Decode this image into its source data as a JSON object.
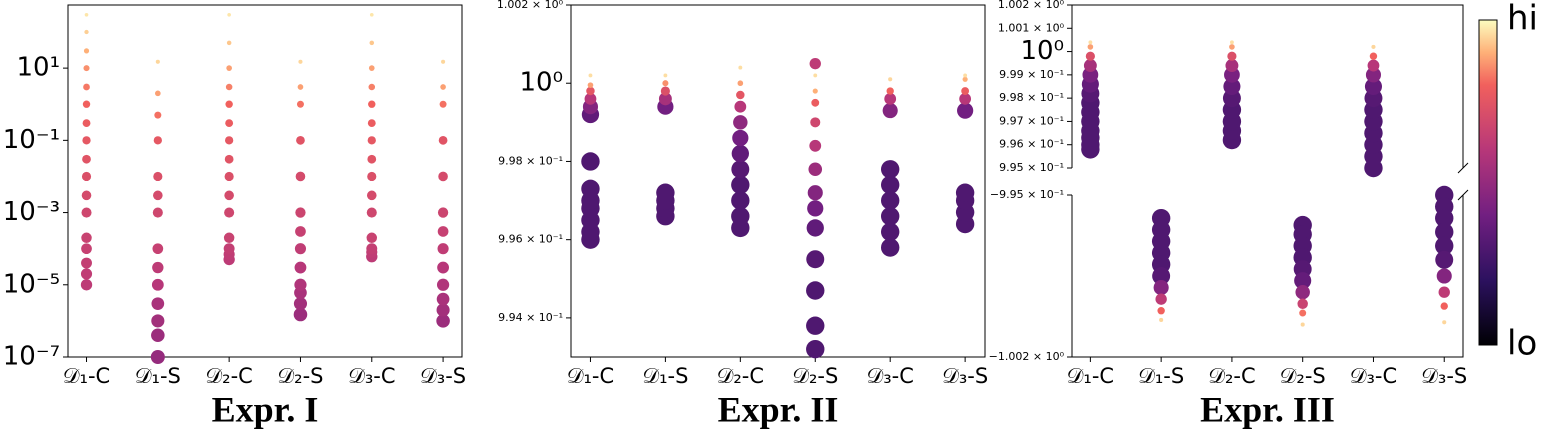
{
  "chart_data": [
    {
      "type": "scatter",
      "title": "Expr. I",
      "log": true,
      "categories": [
        "𝒟₁-C",
        "𝒟₁-S",
        "𝒟₂-C",
        "𝒟₂-S",
        "𝒟₃-C",
        "𝒟₃-S"
      ],
      "ylim": [
        1e-07,
        560
      ],
      "yticks": [
        {
          "value": 10,
          "label": "10¹"
        },
        {
          "value": 0.1,
          "label": "10⁻¹"
        },
        {
          "value": 0.001,
          "label": "10⁻³"
        },
        {
          "value": 1e-05,
          "label": "10⁻⁵"
        },
        {
          "value": 1e-07,
          "label": "10⁻⁷"
        }
      ],
      "points": [
        [
          1e-05,
          2e-05,
          4e-05,
          0.0001,
          0.0002,
          0.001,
          0.003,
          0.01,
          0.03,
          0.1,
          0.3,
          1,
          3,
          10,
          30,
          100,
          300
        ],
        [
          1e-07,
          4e-07,
          1e-06,
          3e-06,
          1e-05,
          3e-05,
          0.0001,
          0.001,
          0.003,
          0.01,
          0.1,
          0.5,
          2,
          15
        ],
        [
          5e-05,
          7e-05,
          0.0001,
          0.0002,
          0.001,
          0.003,
          0.01,
          0.03,
          0.1,
          0.3,
          1,
          3,
          10,
          50,
          300
        ],
        [
          1.5e-06,
          3e-06,
          6e-06,
          1e-05,
          3e-05,
          0.0001,
          0.0003,
          0.001,
          0.01,
          0.1,
          1,
          3,
          15
        ],
        [
          6e-05,
          8e-05,
          0.0001,
          0.0002,
          0.001,
          0.003,
          0.01,
          0.03,
          0.1,
          0.3,
          1,
          3,
          10,
          50,
          300
        ],
        [
          1e-06,
          2e-06,
          4e-06,
          1e-05,
          3e-05,
          0.0001,
          0.0003,
          0.001,
          0.01,
          0.1,
          1,
          3,
          15
        ]
      ],
      "levels": [
        [
          0.62,
          0.63,
          0.64,
          0.65,
          0.66,
          0.68,
          0.7,
          0.72,
          0.74,
          0.76,
          0.78,
          0.8,
          0.83,
          0.86,
          0.9,
          0.94,
          0.97
        ],
        [
          0.5,
          0.52,
          0.54,
          0.56,
          0.6,
          0.62,
          0.65,
          0.68,
          0.7,
          0.72,
          0.76,
          0.82,
          0.88,
          0.95
        ],
        [
          0.62,
          0.63,
          0.64,
          0.66,
          0.68,
          0.7,
          0.72,
          0.74,
          0.76,
          0.78,
          0.8,
          0.84,
          0.88,
          0.93,
          0.97
        ],
        [
          0.52,
          0.54,
          0.56,
          0.58,
          0.6,
          0.63,
          0.65,
          0.67,
          0.7,
          0.74,
          0.82,
          0.88,
          0.95
        ],
        [
          0.62,
          0.63,
          0.64,
          0.66,
          0.68,
          0.7,
          0.72,
          0.74,
          0.76,
          0.78,
          0.8,
          0.84,
          0.88,
          0.93,
          0.97
        ],
        [
          0.52,
          0.54,
          0.56,
          0.58,
          0.6,
          0.63,
          0.65,
          0.67,
          0.7,
          0.74,
          0.82,
          0.88,
          0.95
        ]
      ]
    },
    {
      "type": "scatter",
      "title": "Expr. II",
      "log": false,
      "categories": [
        "𝒟₁-C",
        "𝒟₁-S",
        "𝒟₂-C",
        "𝒟₂-S",
        "𝒟₃-C",
        "𝒟₃-S"
      ],
      "ylim": [
        0.993,
        1.002
      ],
      "yticks": [
        {
          "value": 1.002,
          "label": "1.002 × 10⁰"
        },
        {
          "value": 1.0,
          "label": "10⁰"
        },
        {
          "value": 0.998,
          "label": "9.98 × 10⁻¹"
        },
        {
          "value": 0.996,
          "label": "9.96 × 10⁻¹"
        },
        {
          "value": 0.994,
          "label": "9.94 × 10⁻¹"
        }
      ],
      "points": [
        [
          0.996,
          0.9962,
          0.9965,
          0.9968,
          0.997,
          0.9973,
          0.998,
          0.9992,
          0.9994,
          0.9996,
          0.9998,
          0.99995,
          1.0002
        ],
        [
          0.9966,
          0.9968,
          0.997,
          0.9972,
          0.9994,
          0.9996,
          0.9998,
          1.0,
          1.0002
        ],
        [
          0.9963,
          0.9966,
          0.997,
          0.9974,
          0.9978,
          0.9982,
          0.9986,
          0.999,
          0.9994,
          0.9997,
          1.0,
          1.0004
        ],
        [
          0.9932,
          0.9938,
          0.9947,
          0.9955,
          0.9963,
          0.9968,
          0.9972,
          0.9978,
          0.9984,
          0.999,
          0.9995,
          0.9998,
          1.0002,
          1.0005
        ],
        [
          0.9958,
          0.9962,
          0.9966,
          0.997,
          0.9974,
          0.9978,
          0.9993,
          0.9996,
          0.9998,
          1.0001
        ],
        [
          0.9964,
          0.9967,
          0.997,
          0.9972,
          0.9993,
          0.9996,
          0.9998,
          1.0001,
          1.0002
        ]
      ],
      "levels": [
        [
          0.3,
          0.3,
          0.3,
          0.3,
          0.3,
          0.3,
          0.3,
          0.35,
          0.45,
          0.6,
          0.75,
          0.88,
          0.96
        ],
        [
          0.3,
          0.3,
          0.3,
          0.3,
          0.4,
          0.55,
          0.72,
          0.86,
          0.96
        ],
        [
          0.3,
          0.3,
          0.3,
          0.3,
          0.32,
          0.35,
          0.4,
          0.48,
          0.6,
          0.75,
          0.88,
          0.96
        ],
        [
          0.3,
          0.3,
          0.3,
          0.32,
          0.35,
          0.4,
          0.45,
          0.52,
          0.6,
          0.68,
          0.78,
          0.9,
          0.96,
          0.62
        ],
        [
          0.3,
          0.3,
          0.3,
          0.3,
          0.3,
          0.3,
          0.45,
          0.6,
          0.8,
          0.95
        ],
        [
          0.3,
          0.3,
          0.3,
          0.3,
          0.4,
          0.6,
          0.78,
          0.9,
          0.96
        ]
      ]
    },
    {
      "type": "broken_scatter",
      "title": "Expr. III",
      "log": false,
      "categories": [
        "𝒟₁-C",
        "𝒟₁-S",
        "𝒟₂-C",
        "𝒟₂-S",
        "𝒟₃-C",
        "𝒟₃-S"
      ],
      "ylim": [
        0.995,
        1.002
      ],
      "yticks": [
        {
          "value": 1.002,
          "label": "1.002 × 10⁰"
        },
        {
          "value": 1.001,
          "label": "1.001 × 10⁰"
        },
        {
          "value": 1.0,
          "label": "10⁰"
        },
        {
          "value": 0.999,
          "label": "9.99 × 10⁻¹"
        },
        {
          "value": 0.998,
          "label": "9.98 × 10⁻¹"
        },
        {
          "value": 0.997,
          "label": "9.97 × 10⁻¹"
        },
        {
          "value": 0.996,
          "label": "9.96 × 10⁻¹"
        },
        {
          "value": 0.995,
          "label": "9.95 × 10⁻¹"
        }
      ],
      "ylim_lower": [
        -1.002,
        -0.995
      ],
      "yticks_lower": [
        {
          "value": -0.995,
          "label": "−9.95 × 10⁻¹"
        },
        {
          "value": -1.002,
          "label": "−1.002 × 10⁰"
        }
      ],
      "points": [
        [
          0.9958,
          0.996,
          0.9963,
          0.9966,
          0.997,
          0.9974,
          0.9978,
          0.9982,
          0.9986,
          0.999,
          0.9994,
          0.9998,
          1.0002,
          1.0004
        ],
        [
          -0.996,
          -0.9965,
          -0.997,
          -0.9975,
          -0.998,
          -0.9985,
          -0.999,
          -0.9995,
          -1.0,
          -1.0004
        ],
        [
          0.9962,
          0.9966,
          0.997,
          0.9975,
          0.998,
          0.9985,
          0.999,
          0.9994,
          0.9998,
          1.0002,
          1.0004
        ],
        [
          -0.9963,
          -0.9967,
          -0.9972,
          -0.9977,
          -0.9982,
          -0.9987,
          -0.9992,
          -0.9997,
          -1.0001,
          -1.0006
        ],
        [
          0.995,
          0.9955,
          0.996,
          0.9965,
          0.997,
          0.9975,
          0.998,
          0.9985,
          0.999,
          0.9994,
          0.9998,
          1.0002
        ],
        [
          -0.995,
          -0.9955,
          -0.996,
          -0.9966,
          -0.9972,
          -0.9978,
          -0.9985,
          -0.9992,
          -0.9998,
          -1.0005
        ]
      ],
      "levels": [
        [
          0.3,
          0.3,
          0.3,
          0.3,
          0.3,
          0.3,
          0.3,
          0.32,
          0.36,
          0.42,
          0.55,
          0.72,
          0.88,
          0.96
        ],
        [
          0.3,
          0.3,
          0.3,
          0.3,
          0.3,
          0.32,
          0.45,
          0.62,
          0.8,
          0.95
        ],
        [
          0.3,
          0.3,
          0.3,
          0.3,
          0.32,
          0.36,
          0.42,
          0.55,
          0.72,
          0.88,
          0.96
        ],
        [
          0.3,
          0.3,
          0.3,
          0.3,
          0.32,
          0.36,
          0.48,
          0.66,
          0.82,
          0.95
        ],
        [
          0.3,
          0.3,
          0.3,
          0.3,
          0.3,
          0.3,
          0.32,
          0.36,
          0.45,
          0.6,
          0.8,
          0.95
        ],
        [
          0.3,
          0.3,
          0.3,
          0.3,
          0.3,
          0.32,
          0.45,
          0.62,
          0.8,
          0.95
        ]
      ]
    }
  ],
  "colorbar": {
    "max_label": "hi",
    "min_label": "lo"
  }
}
